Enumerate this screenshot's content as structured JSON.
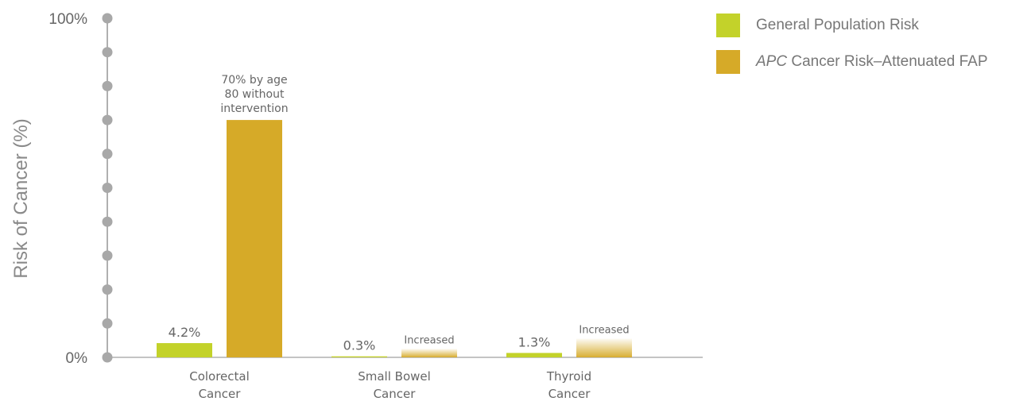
{
  "chart_data": {
    "type": "bar",
    "ylabel": "Risk of Cancer (%)",
    "xlabel": "",
    "ylim": [
      0,
      100
    ],
    "yticks": [
      "0%",
      "100%"
    ],
    "categories": [
      [
        "Colorectal",
        "Cancer"
      ],
      [
        "Small Bowel",
        "Cancer"
      ],
      [
        "Thyroid",
        "Cancer"
      ]
    ],
    "series": [
      {
        "name": "General Population Risk",
        "color": "#c3d22a",
        "values": [
          4.2,
          0.3,
          1.3
        ],
        "labels": [
          "4.2%",
          "0.3%",
          "1.3%"
        ]
      },
      {
        "name_prefix": "APC",
        "name_suffix": " Cancer Risk–Attenuated FAP",
        "color": "#d6aa28",
        "values": [
          70,
          2.5,
          5.5
        ],
        "labels": [
          [
            "70% by age",
            "80 without",
            "intervention"
          ],
          "Increased",
          "Increased"
        ],
        "gradient": [
          false,
          true,
          true
        ]
      }
    ],
    "legend_position": "top-right"
  }
}
